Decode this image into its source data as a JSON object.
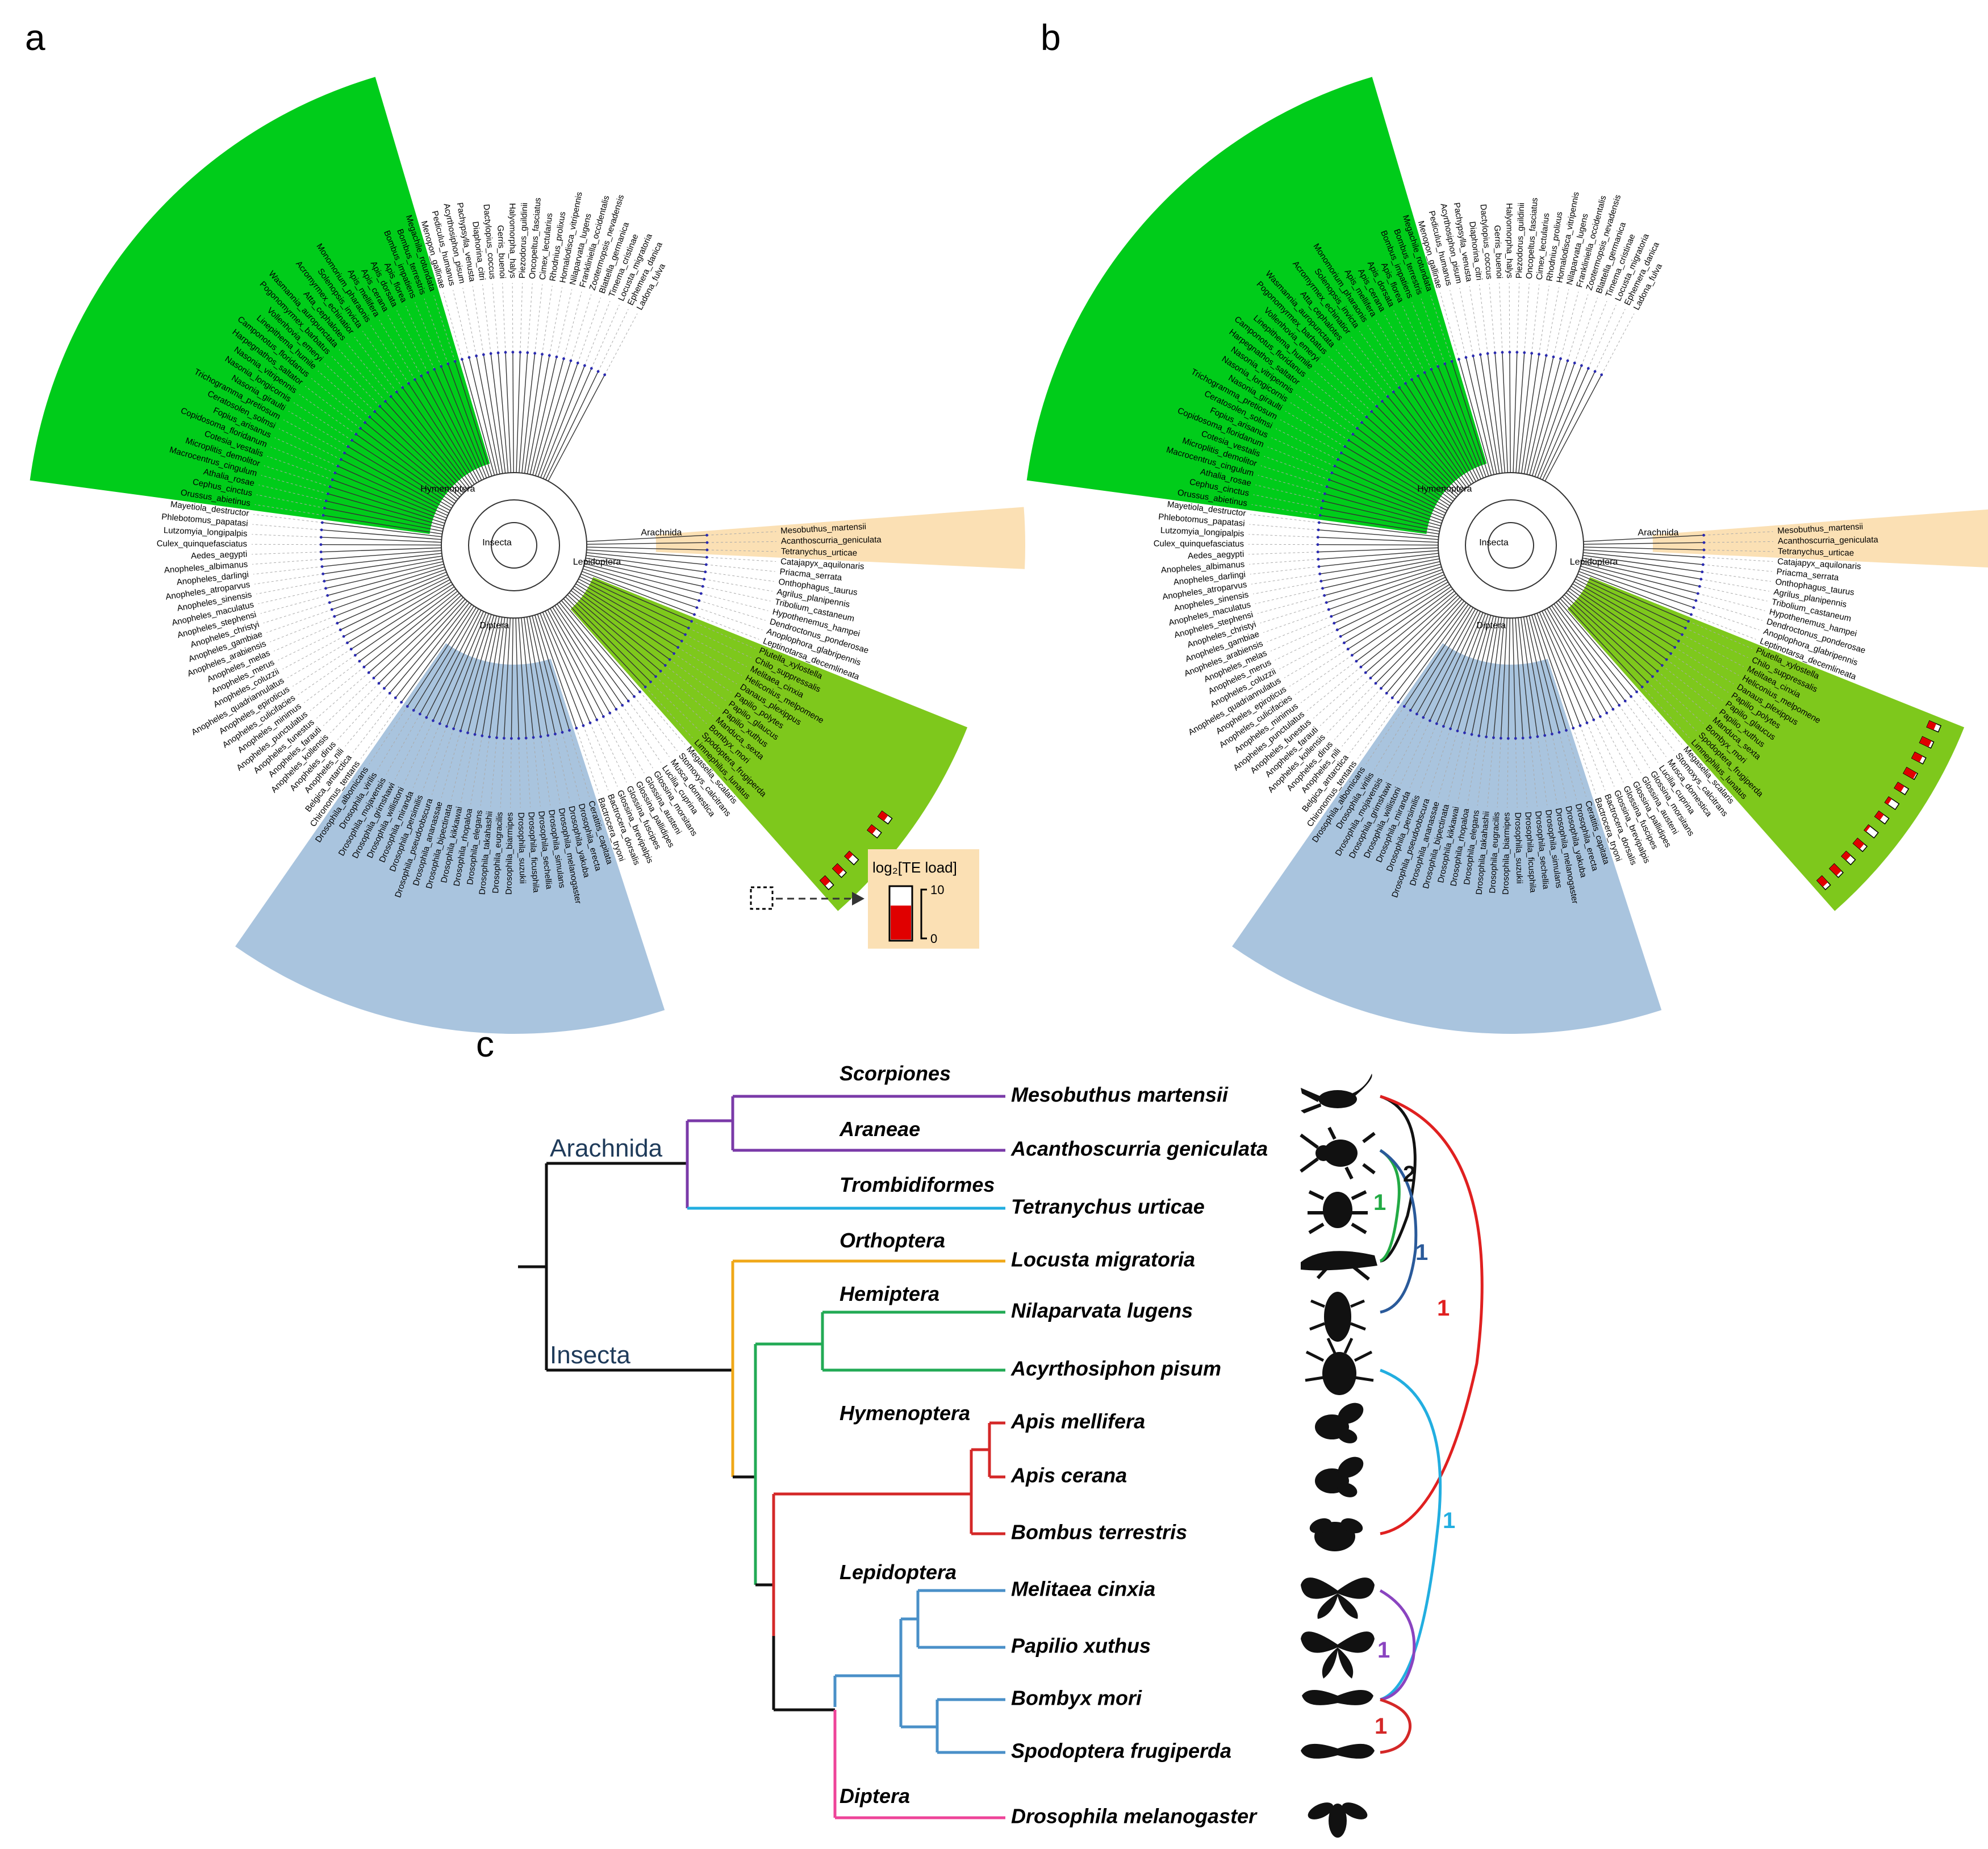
{
  "panels": {
    "a": {
      "letter": "a"
    },
    "b": {
      "letter": "b"
    },
    "c": {
      "letter": "c"
    }
  },
  "clade_labels": {
    "insecta": "Insecta",
    "arachnida": "Arachnida",
    "diptera": "Diptera",
    "lepidoptera": "Lepidoptera",
    "hymenoptera": "Hymenoptera"
  },
  "species": [
    "Mesobuthus_martensii",
    "Acanthoscurria_geniculata",
    "Tetranychus_urticae",
    "Catajapyx_aquilonaris",
    "Priacma_serrata",
    "Onthophagus_taurus",
    "Agrilus_planipennis",
    "Tribolium_castaneum",
    "Hypothenemus_hampei",
    "Dendroctonus_ponderosae",
    "Anoplophora_glabripennis",
    "Leptinotarsa_decemlineata",
    "Plutella_xylostella",
    "Chilo_suppressalis",
    "Melitaea_cinxia",
    "Heliconius_melpomene",
    "Danaus_plexippus",
    "Papilio_polytes",
    "Papilio_glaucus",
    "Papilio_xuthus",
    "Manduca_sexta",
    "Bombyx_mori",
    "Spodoptera_frugiperda",
    "Limnephilus_lunatus",
    "Megaselia_scalaris",
    "Stomoxys_calcitrans",
    "Musca_domestica",
    "Lucilia_cuprina",
    "Glossina_morsitans",
    "Glossina_austeni",
    "Glossina_pallidipes",
    "Glossina_fuscipes",
    "Glossina_brevipalpis",
    "Bactrocera_dorsalis",
    "Bactrocera_tryoni",
    "Ceratitis_capitata",
    "Drosophila_erecta",
    "Drosophila_yakuba",
    "Drosophila_melanogaster",
    "Drosophila_simulans",
    "Drosophila_sechellia",
    "Drosophila_ficusphila",
    "Drosophila_suzukii",
    "Drosophila_biarmipes",
    "Drosophila_eugracilis",
    "Drosophila_takahashii",
    "Drosophila_elegans",
    "Drosophila_rhopaloa",
    "Drosophila_kikkawai",
    "Drosophila_bipectinata",
    "Drosophila_ananassae",
    "Drosophila_pseudoobscura",
    "Drosophila_persimilis",
    "Drosophila_miranda",
    "Drosophila_willistoni",
    "Drosophila_grimshawi",
    "Drosophila_mojavensis",
    "Drosophila_virilis",
    "Drosophila_albomicans",
    "Chironomus_tentans",
    "Belgica_antarctica",
    "Anopheles_nili",
    "Anopheles_dirus",
    "Anopheles_kollensis",
    "Anopheles_farauti",
    "Anopheles_funestus",
    "Anopheles_punctulatus",
    "Anopheles_minimus",
    "Anopheles_culicifacies",
    "Anopheles_epiroticus",
    "Anopheles_quadriannulatus",
    "Anopheles_coluzzii",
    "Anopheles_merus",
    "Anopheles_melas",
    "Anopheles_arabiensis",
    "Anopheles_gambiae",
    "Anopheles_christyi",
    "Anopheles_stephensi",
    "Anopheles_maculatus",
    "Anopheles_sinensis",
    "Anopheles_atroparvus",
    "Anopheles_darlingi",
    "Anopheles_albimanus",
    "Aedes_aegypti",
    "Culex_quinquefasciatus",
    "Lutzomyia_longipalpis",
    "Phlebotomus_papatasi",
    "Mayetiola_destructor",
    "Orussus_abietinus",
    "Cephus_cinctus",
    "Athalia_rosae",
    "Macrocentrus_cingulum",
    "Microplitis_demolitor",
    "Cotesia_vestalis",
    "Copidosoma_floridanum",
    "Fopius_arisanus",
    "Ceratosolen_solmsi",
    "Trichogramma_pretiosum",
    "Nasonia_giraulti",
    "Nasonia_longicornis",
    "Nasonia_vitripennis",
    "Harpegnathos_saltator",
    "Camponotus_floridanus",
    "Linepithema_humile",
    "Vollenhovia_emeryi",
    "Pogonomyrmex_barbatus",
    "Wasmannia_auropunctata",
    "Atta_cephalotes",
    "Acromyrmex_echinatior",
    "Solenopsis_invicta",
    "Monomorium_pharaonis",
    "Apis_mellifera",
    "Apis_cerana",
    "Apis_dorsata",
    "Apis_florea",
    "Bombus_impatiens",
    "Bombus_terrestris",
    "Megachile_rotundata",
    "Menopon_gallinae",
    "Pediculus_humanus",
    "Acyrthosiphon_pisum",
    "Pachypsylla_venusta",
    "Diaphorina_citri",
    "Dactylopius_coccus",
    "Gerris_buenoi",
    "Halyomorpha_halys",
    "Piezodorus_guildinii",
    "Oncopeltus_fasciatus",
    "Cimex_lectularius",
    "Rhodnius_prolixus",
    "Homalodisca_vitripennis",
    "Nilaparvata_lugens",
    "Frankliniella_occidentalis",
    "Zootermopsis_nevadensis",
    "Blattella_germanica",
    "Timema_cristinae",
    "Locusta_migratoria",
    "Ephemera_danica",
    "Ladona_fulva"
  ],
  "legend": {
    "title": "log₂[TE load]",
    "max": "10",
    "min": "0",
    "example_value": 6.5
  },
  "te_load_a": [
    {
      "species": "Papilio_glaucus",
      "value": 6
    },
    {
      "species": "Papilio_xuthus",
      "value": 5
    },
    {
      "species": "Bombyx_mori",
      "value": 4
    },
    {
      "species": "Spodoptera_frugiperda",
      "value": 7
    },
    {
      "species": "Limnephilus_lunatus",
      "value": 6
    }
  ],
  "te_load_b": [
    {
      "species": "Plutella_xylostella",
      "value": 6
    },
    {
      "species": "Chilo_suppressalis",
      "value": 8
    },
    {
      "species": "Melitaea_cinxia",
      "value": 7
    },
    {
      "species": "Heliconius_melpomene",
      "value": 9
    },
    {
      "species": "Danaus_plexippus",
      "value": 6
    },
    {
      "species": "Papilio_polytes",
      "value": 3
    },
    {
      "species": "Papilio_glaucus",
      "value": 5
    },
    {
      "species": "Papilio_xuthus",
      "value": 2
    },
    {
      "species": "Manduca_sexta",
      "value": 7
    },
    {
      "species": "Bombyx_mori",
      "value": 5
    },
    {
      "species": "Spodoptera_frugiperda",
      "value": 8
    },
    {
      "species": "Limnephilus_lunatus",
      "value": 7
    }
  ],
  "panel_c": {
    "classes": {
      "arachnida": "Arachnida",
      "insecta": "Insecta"
    },
    "orders": {
      "scorpiones": "Scorpiones",
      "araneae": "Araneae",
      "trombidiformes": "Trombidiformes",
      "orthoptera": "Orthoptera",
      "hemiptera": "Hemiptera",
      "hymenoptera": "Hymenoptera",
      "lepidoptera": "Lepidoptera",
      "diptera": "Diptera"
    },
    "species": [
      "Mesobuthus martensii",
      "Acanthoscurria geniculata",
      "Tetranychus urticae",
      "Locusta migratoria",
      "Nilaparvata lugens",
      "Acyrthosiphon pisum",
      "Apis mellifera",
      "Apis cerana",
      "Bombus terrestris",
      "Melitaea cinxia",
      "Papilio xuthus",
      "Bombyx mori",
      "Spodoptera frugiperda",
      "Drosophila melanogaster"
    ],
    "transfers": [
      {
        "from": "Mesobuthus martensii",
        "to": "Locusta migratoria",
        "count": "2",
        "color": "#111111"
      },
      {
        "from": "Acanthoscurria geniculata",
        "to": "Locusta migratoria",
        "count": "1",
        "color": "#22aa44"
      },
      {
        "from": "Acanthoscurria geniculata",
        "to": "Nilaparvata lugens",
        "count": "1",
        "color": "#2a5a9a"
      },
      {
        "from": "Mesobuthus martensii",
        "to": "Bombus terrestris",
        "count": "1",
        "color": "#e02020"
      },
      {
        "from": "Acyrthosiphon pisum",
        "to": "Bombyx mori",
        "count": "1",
        "color": "#22aee0"
      },
      {
        "from": "Melitaea cinxia",
        "to": "Bombyx mori",
        "count": "1",
        "color": "#8a44c0"
      },
      {
        "from": "Bombyx mori",
        "to": "Spodoptera frugiperda",
        "count": "1",
        "color": "#d42828"
      }
    ]
  },
  "colors": {
    "hymenoptera_band": "#00cc1a",
    "lepidoptera_band": "#7ec81c",
    "diptera_band": "#a9c4de",
    "arachnida_band": "#fbe0b4",
    "tree_branch": "#333333",
    "node_dot": "#2a2ab0",
    "bar_fill": "#e00000",
    "scorpiones": "#7a3aa8",
    "trombidiformes": "#22aee0",
    "orthoptera": "#f0a818",
    "hemiptera": "#22aa55",
    "hymenoptera": "#d42828",
    "lepidoptera": "#4a90c8",
    "diptera": "#ee4499",
    "backbone": "#111111"
  }
}
